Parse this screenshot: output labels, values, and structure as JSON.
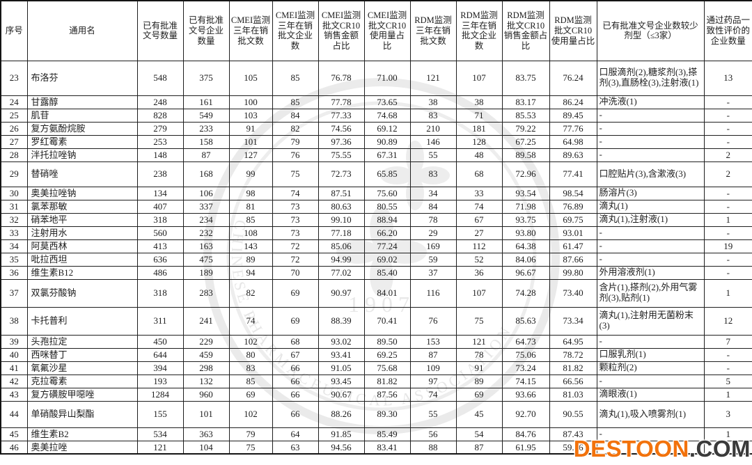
{
  "colors": {
    "border": "#1e1e1e",
    "text": "#1c1c1c",
    "seal_gray": "#dcdcdc",
    "destoon_orange": "#f2720c",
    "destoon_dark": "#3a3a3a"
  },
  "table": {
    "headers": [
      "序号",
      "通用名",
      "已有批准文号数量",
      "已有批准文号企业数量",
      "CMEI监测三年在销批文数",
      "CMEI监测三年在销批文企业数",
      "CMEI监测批文CR10销售金额占比",
      "CMEI监测批文CR10使用量占比",
      "RDM监测三年在销批文数",
      "RDM监测三年在销批文企业数",
      "RDM监测批文CR10销售金额占比",
      "RDM监测批文CR10使用量占比",
      "已有批准文号企业数较少剂型（≤3家）",
      "通过药品一致性评价的企业数量"
    ],
    "rows": [
      [
        "23",
        "布洛芬",
        "548",
        "375",
        "105",
        "85",
        "76.78",
        "71.00",
        "121",
        "107",
        "83.75",
        "76.24",
        "口服滴剂(2),糖浆剂(3),搽剂(3),直肠栓(3),注射液(1)",
        "13"
      ],
      [
        "24",
        "甘露醇",
        "248",
        "161",
        "100",
        "85",
        "77.78",
        "73.65",
        "38",
        "38",
        "83.17",
        "86.24",
        "冲洗液(1)",
        "-"
      ],
      [
        "25",
        "肌苷",
        "828",
        "549",
        "103",
        "84",
        "77.33",
        "74.68",
        "83",
        "71",
        "85.53",
        "89.45",
        "-",
        "-"
      ],
      [
        "26",
        "复方氨酚烷胺",
        "279",
        "233",
        "91",
        "82",
        "74.56",
        "69.12",
        "210",
        "181",
        "79.22",
        "77.76",
        "-",
        "-"
      ],
      [
        "27",
        "罗红霉素",
        "253",
        "158",
        "101",
        "79",
        "97.36",
        "90.89",
        "146",
        "128",
        "67.25",
        "64.98",
        "-",
        "-"
      ],
      [
        "28",
        "泮托拉唑钠",
        "148",
        "87",
        "127",
        "76",
        "75.55",
        "67.31",
        "55",
        "48",
        "89.58",
        "89.63",
        "-",
        "2"
      ],
      [
        "29",
        "替硝唑",
        "238",
        "168",
        "99",
        "75",
        "72.73",
        "65.85",
        "83",
        "68",
        "72.96",
        "77.41",
        "口腔贴片(3),含漱液(3)",
        "2"
      ],
      [
        "30",
        "奥美拉唑钠",
        "134",
        "106",
        "98",
        "74",
        "87.51",
        "75.60",
        "34",
        "33",
        "93.54",
        "98.54",
        "肠溶片(3)",
        "-"
      ],
      [
        "31",
        "氯苯那敏",
        "407",
        "337",
        "81",
        "73",
        "80.63",
        "80.55",
        "84",
        "74",
        "71.98",
        "76.89",
        "滴丸(1)",
        "-"
      ],
      [
        "32",
        "硝苯地平",
        "318",
        "234",
        "85",
        "73",
        "99.10",
        "88.94",
        "78",
        "67",
        "93.75",
        "69.75",
        "滴丸(1),注射液(1)",
        "1"
      ],
      [
        "33",
        "注射用水",
        "560",
        "232",
        "108",
        "73",
        "77.18",
        "66.20",
        "29",
        "27",
        "93.80",
        "93.01",
        "-",
        "-"
      ],
      [
        "34",
        "阿莫西林",
        "413",
        "163",
        "143",
        "72",
        "85.06",
        "77.24",
        "169",
        "112",
        "64.38",
        "61.47",
        "-",
        "19"
      ],
      [
        "35",
        "吡拉西坦",
        "636",
        "475",
        "89",
        "72",
        "94.99",
        "69.02",
        "59",
        "52",
        "84.06",
        "87.66",
        "-",
        "-"
      ],
      [
        "36",
        "维生素B12",
        "486",
        "189",
        "94",
        "70",
        "77.02",
        "85.40",
        "37",
        "36",
        "96.67",
        "99.80",
        "外用溶液剂(1)",
        "-"
      ],
      [
        "37",
        "双氯芬酸钠",
        "318",
        "283",
        "82",
        "69",
        "90.97",
        "84.01",
        "116",
        "107",
        "74.28",
        "73.40",
        "含片(1),搽剂(2),外用气雾剂(3),贴剂(1)",
        "1"
      ],
      [
        "38",
        "卡托普利",
        "311",
        "241",
        "74",
        "69",
        "88.39",
        "70.41",
        "76",
        "75",
        "85.63",
        "73.34",
        "滴丸(1),注射用无菌粉末(3)",
        "12"
      ],
      [
        "39",
        "头孢拉定",
        "450",
        "229",
        "102",
        "68",
        "93.02",
        "89.50",
        "153",
        "121",
        "64.73",
        "64.95",
        "-",
        "7"
      ],
      [
        "40",
        "西咪替丁",
        "644",
        "459",
        "80",
        "67",
        "93.41",
        "69.25",
        "87",
        "78",
        "75.06",
        "78.72",
        "口服乳剂(1)",
        "-"
      ],
      [
        "41",
        "氧氟沙星",
        "394",
        "298",
        "83",
        "66",
        "91.05",
        "75.68",
        "109",
        "91",
        "73.24",
        "81.82",
        "颗粒剂(2)",
        "-"
      ],
      [
        "42",
        "克拉霉素",
        "193",
        "132",
        "85",
        "66",
        "93.45",
        "81.82",
        "97",
        "89",
        "74.15",
        "66.56",
        "-",
        "5"
      ],
      [
        "43",
        "复方磺胺甲噁唑",
        "1284",
        "960",
        "69",
        "66",
        "90.67",
        "87.56",
        "74",
        "69",
        "93.66",
        "81.03",
        "滴眼液(1)",
        "1"
      ],
      [
        "44",
        "单硝酸异山梨酯",
        "155",
        "101",
        "102",
        "66",
        "88.26",
        "89.30",
        "55",
        "45",
        "92.70",
        "90.55",
        "滴丸(1),吸入喷雾剂(1)",
        "3"
      ],
      [
        "45",
        "维生素B2",
        "534",
        "363",
        "79",
        "64",
        "91.85",
        "85.49",
        "56",
        "54",
        "84.76",
        "87.43",
        "-",
        "1"
      ],
      [
        "46",
        "奥美拉唑",
        "121",
        "104",
        "75",
        "63",
        "94.56",
        "83.41",
        "88",
        "87",
        "61.95",
        "59.86",
        "-",
        "-"
      ]
    ]
  },
  "seal_watermark": {
    "ring_text": "CHINESE  PHARMACEUTICAL  ASSOCIATION",
    "year": "1907"
  },
  "site_watermark": {
    "brand": "DESTOON",
    "suffix": ".COM"
  }
}
